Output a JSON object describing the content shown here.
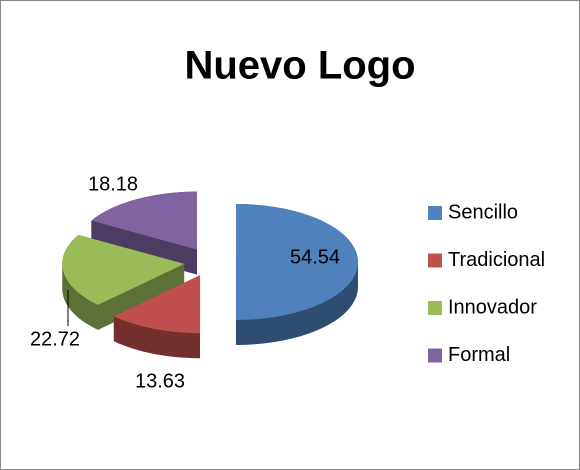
{
  "chart_data": {
    "type": "pie",
    "title": "Nuevo Logo",
    "categories": [
      "Sencillo",
      "Tradicional",
      "Innovador",
      "Formal"
    ],
    "values": [
      54.54,
      13.63,
      22.72,
      18.18
    ],
    "colors": [
      "#4f81bd",
      "#c0504d",
      "#9bbb59",
      "#8064a2"
    ],
    "legend": "right"
  }
}
